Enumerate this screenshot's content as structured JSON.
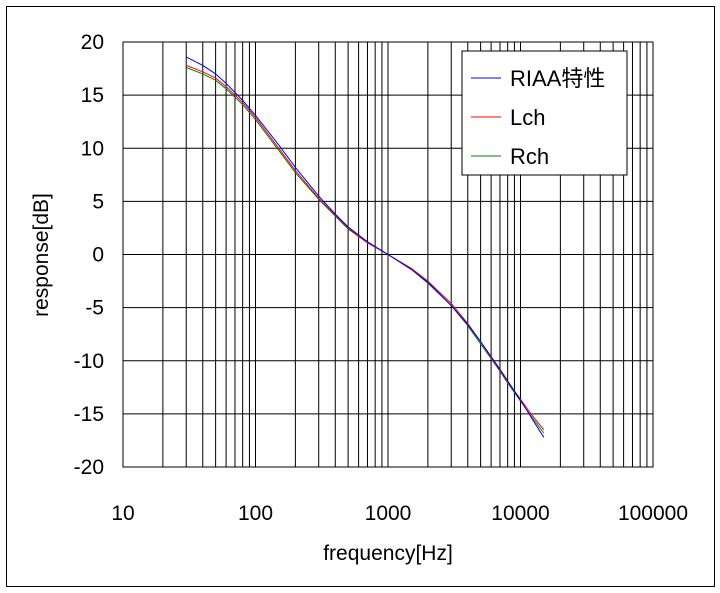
{
  "chart_data": {
    "type": "line",
    "title": "",
    "xlabel": "frequency[Hz]",
    "ylabel": "response[dB]",
    "x_scale": "log",
    "xlim": [
      10,
      100000
    ],
    "ylim": [
      -20,
      20
    ],
    "x_ticks": [
      10,
      100,
      1000,
      10000,
      100000
    ],
    "x_tick_labels": [
      "10",
      "100",
      "1000",
      "10000",
      "100000"
    ],
    "y_ticks": [
      20,
      15,
      10,
      5,
      0,
      -5,
      -10,
      -15,
      -20
    ],
    "y_tick_labels": [
      "20",
      "15",
      "10",
      "5",
      "0",
      "-5",
      "-10",
      "-15",
      "-20"
    ],
    "grid": true,
    "legend_position": "top-right",
    "series": [
      {
        "name": "RIAA特性",
        "color": "#0000ff",
        "x": [
          30,
          40,
          50,
          60,
          80,
          100,
          150,
          200,
          300,
          400,
          500,
          700,
          1000,
          1500,
          2000,
          3000,
          4000,
          5000,
          6000,
          7000,
          8000,
          10000,
          12000,
          15000
        ],
        "y": [
          18.6,
          17.8,
          17.0,
          16.1,
          14.5,
          13.1,
          10.3,
          8.2,
          5.5,
          3.8,
          2.6,
          1.2,
          0.0,
          -1.4,
          -2.6,
          -4.8,
          -6.6,
          -8.2,
          -9.6,
          -10.8,
          -11.9,
          -13.7,
          -15.3,
          -17.2
        ]
      },
      {
        "name": "Lch",
        "color": "#ff0000",
        "x": [
          30,
          40,
          50,
          60,
          80,
          100,
          150,
          200,
          300,
          400,
          500,
          700,
          1000,
          1500,
          2000,
          3000,
          4000,
          5000,
          6000,
          7000,
          8000,
          10000,
          12000,
          15000
        ],
        "y": [
          17.8,
          17.2,
          16.6,
          15.8,
          14.3,
          12.9,
          10.0,
          7.9,
          5.3,
          3.7,
          2.5,
          1.1,
          0.0,
          -1.3,
          -2.5,
          -4.6,
          -6.5,
          -8.2,
          -9.7,
          -10.9,
          -12.0,
          -13.6,
          -15.0,
          -16.5
        ]
      },
      {
        "name": "Rch",
        "color": "#008000",
        "x": [
          30,
          40,
          50,
          60,
          80,
          100,
          150,
          200,
          300,
          400,
          500,
          700,
          1000,
          1500,
          2000,
          3000,
          4000,
          5000,
          6000,
          7000,
          8000,
          10000,
          12000,
          15000
        ],
        "y": [
          17.6,
          17.0,
          16.4,
          15.6,
          14.1,
          12.7,
          9.8,
          7.7,
          5.2,
          3.6,
          2.4,
          1.1,
          0.0,
          -1.4,
          -2.7,
          -4.8,
          -6.7,
          -8.4,
          -9.8,
          -11.0,
          -12.1,
          -13.8,
          -15.2,
          -16.8
        ]
      }
    ]
  }
}
